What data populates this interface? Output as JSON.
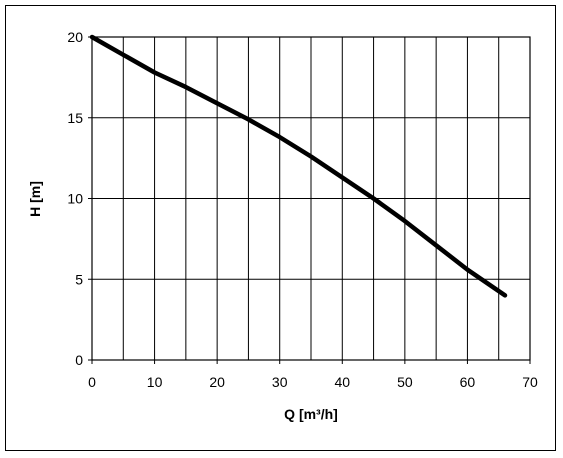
{
  "chart_data": {
    "type": "line",
    "title": "",
    "xlabel": "Q [m³/h]",
    "ylabel": "H [m]",
    "xlim": [
      0,
      70
    ],
    "ylim": [
      0,
      20
    ],
    "x_ticks": [
      0,
      10,
      20,
      30,
      40,
      50,
      60,
      70
    ],
    "y_ticks": [
      0,
      5,
      10,
      15,
      20
    ],
    "x_gridlines": [
      0,
      5,
      10,
      15,
      20,
      25,
      30,
      35,
      40,
      45,
      50,
      55,
      60,
      65,
      70
    ],
    "grid": true,
    "legend": "none",
    "line_color": "#000000",
    "series": [
      {
        "x": [
          0,
          5,
          10,
          15,
          20,
          25,
          30,
          35,
          40,
          45,
          50,
          55,
          60,
          66
        ],
        "y": [
          20,
          18.9,
          17.8,
          16.9,
          15.9,
          14.9,
          13.8,
          12.6,
          11.3,
          10.0,
          8.6,
          7.1,
          5.6,
          4.0
        ]
      }
    ]
  }
}
